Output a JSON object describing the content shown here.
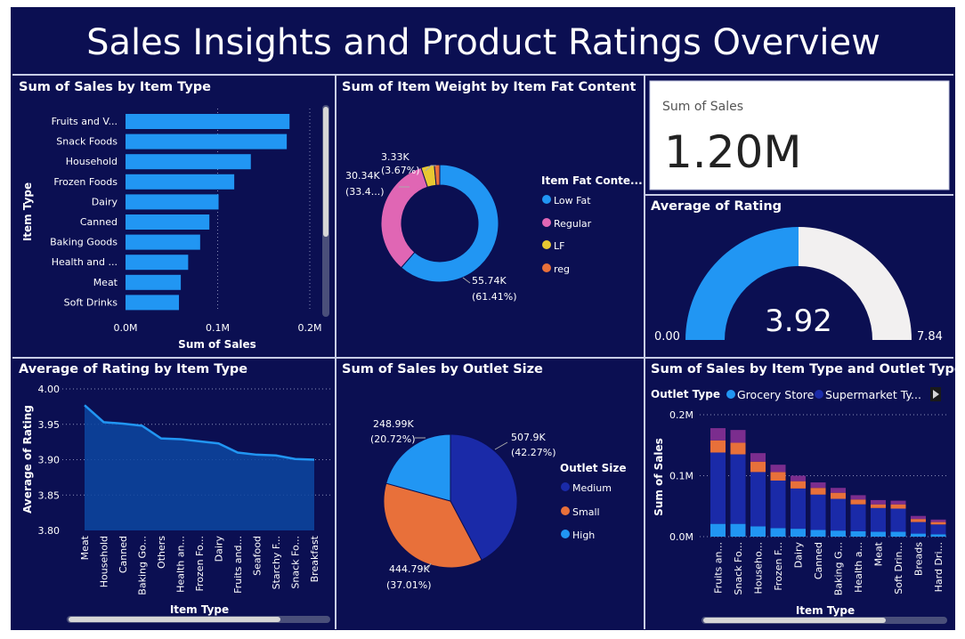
{
  "dashboard": {
    "title": "Sales Insights and Product Ratings Overview",
    "colors": {
      "background": "#0b0f52",
      "bar": "#2196f3",
      "frame": "#c8cde6"
    }
  },
  "panels": {
    "sales_by_item": {
      "title": "Sum of Sales by Item Type"
    },
    "weight_by_fat": {
      "title": "Sum of Item Weight by Item Fat Content"
    },
    "card": {
      "label": "Sum of Sales",
      "value": "1.20M"
    },
    "gauge": {
      "title": "Average of Rating"
    },
    "rating_by_item": {
      "title": "Average of Rating by Item Type"
    },
    "sales_by_size": {
      "title": "Sum of Sales by Outlet Size"
    },
    "stacked": {
      "title": "Sum of Sales by Item Type and Outlet Type"
    }
  },
  "chart_data": [
    {
      "type": "bar",
      "orientation": "horizontal",
      "title": "Sum of Sales by Item Type",
      "categories": [
        "Fruits and V...",
        "Snack Foods",
        "Household",
        "Frozen Foods",
        "Dairy",
        "Canned",
        "Baking Goods",
        "Health and ...",
        "Meat",
        "Soft Drinks"
      ],
      "values": [
        0.178,
        0.175,
        0.136,
        0.118,
        0.101,
        0.091,
        0.081,
        0.068,
        0.06,
        0.058
      ],
      "unit": "M",
      "xlabel": "Sum of Sales",
      "ylabel": "Item Type",
      "xticks": [
        "0.0M",
        "0.1M",
        "0.2M"
      ],
      "xlim": [
        0,
        0.2
      ],
      "color": "#2196f3",
      "grid": "vertical dotted"
    },
    {
      "type": "pie",
      "style": "donut",
      "title": "Sum of Item Weight by Item Fat Content",
      "legend_title": "Item Fat Conte...",
      "legend_position": "right",
      "slices": [
        {
          "name": "Low Fat",
          "value": 55.74,
          "percent": 61.41,
          "label": "55.74K",
          "sub": "(61.41%)",
          "color": "#2196f3"
        },
        {
          "name": "Regular",
          "value": 30.34,
          "percent": 33.4,
          "label": "30.34K",
          "sub": "(33.4...)",
          "color": "#e066b4"
        },
        {
          "name": "LF",
          "value": 3.33,
          "percent": 3.67,
          "label": "3.33K",
          "sub": "(3.67%)",
          "color": "#e8c832"
        },
        {
          "name": "reg",
          "value": 1.35,
          "percent": 1.49,
          "label": "",
          "sub": "",
          "color": "#e8703a"
        }
      ]
    },
    {
      "type": "gauge",
      "title": "Average of Rating",
      "value": 3.92,
      "value_label": "3.92",
      "min": 0,
      "max": 7.84,
      "min_label": "0.00",
      "max_label": "7.84",
      "fill_color": "#2196f3",
      "track_color": "#f2f0f0"
    },
    {
      "type": "area",
      "title": "Average of Rating by Item Type",
      "categories": [
        "Meat",
        "Household",
        "Canned",
        "Baking Go...",
        "Others",
        "Health an...",
        "Frozen Fo...",
        "Dairy",
        "Fruits and...",
        "Seafood",
        "Starchy F...",
        "Snack Fo...",
        "Breakfast"
      ],
      "values": [
        3.977,
        3.953,
        3.951,
        3.948,
        3.93,
        3.929,
        3.926,
        3.923,
        3.91,
        3.907,
        3.906,
        3.901,
        3.9
      ],
      "xlabel": "Item Type",
      "ylabel": "Average of Rating",
      "yticks": [
        "4.00",
        "3.95",
        "3.90",
        "3.85",
        "3.80"
      ],
      "ylim": [
        3.8,
        4.0
      ],
      "line_color": "#2196f3",
      "fill_color": "#0d47a1"
    },
    {
      "type": "pie",
      "title": "Sum of Sales by Outlet Size",
      "legend_title": "Outlet Size",
      "legend_position": "right",
      "slices": [
        {
          "name": "Medium",
          "value": 507.9,
          "percent": 42.27,
          "label": "507.9K",
          "sub": "(42.27%)",
          "color": "#1a2aa8"
        },
        {
          "name": "Small",
          "value": 444.79,
          "percent": 37.01,
          "label": "444.79K",
          "sub": "(37.01%)",
          "color": "#e8703a"
        },
        {
          "name": "High",
          "value": 248.99,
          "percent": 20.72,
          "label": "248.99K",
          "sub": "(20.72%)",
          "color": "#2196f3"
        }
      ]
    },
    {
      "type": "bar",
      "stacked": true,
      "title": "Sum of Sales by Item Type and Outlet Type",
      "legend_title": "Outlet Type",
      "legend_position": "top",
      "legend_entries": [
        "Grocery Store",
        "Supermarket Ty..."
      ],
      "categories": [
        "Fruits an...",
        "Snack Fo...",
        "Househo...",
        "Frozen F...",
        "Dairy",
        "Canned",
        "Baking G...",
        "Health a...",
        "Meat",
        "Soft Drin...",
        "Breads",
        "Hard Dri..."
      ],
      "series": [
        {
          "name": "Grocery Store",
          "color": "#2196f3",
          "values": [
            0.021,
            0.021,
            0.017,
            0.014,
            0.013,
            0.011,
            0.01,
            0.009,
            0.008,
            0.008,
            0.005,
            0.004
          ]
        },
        {
          "name": "Supermarket Ty...",
          "color": "#1a2aa8",
          "values": [
            0.117,
            0.114,
            0.089,
            0.078,
            0.066,
            0.058,
            0.052,
            0.044,
            0.039,
            0.038,
            0.019,
            0.016
          ]
        },
        {
          "color": "#e8703a",
          "values": [
            0.02,
            0.019,
            0.017,
            0.014,
            0.012,
            0.011,
            0.01,
            0.008,
            0.006,
            0.007,
            0.005,
            0.004
          ]
        },
        {
          "color": "#7b2d8e",
          "values": [
            0.02,
            0.021,
            0.014,
            0.012,
            0.009,
            0.009,
            0.008,
            0.007,
            0.007,
            0.006,
            0.005,
            0.004
          ]
        }
      ],
      "xlabel": "Item Type",
      "ylabel": "Sum of Sales",
      "yticks": [
        "0.2M",
        "0.1M",
        "0.0M"
      ],
      "ylim": [
        0,
        0.2
      ],
      "grid": "horizontal dotted"
    }
  ]
}
